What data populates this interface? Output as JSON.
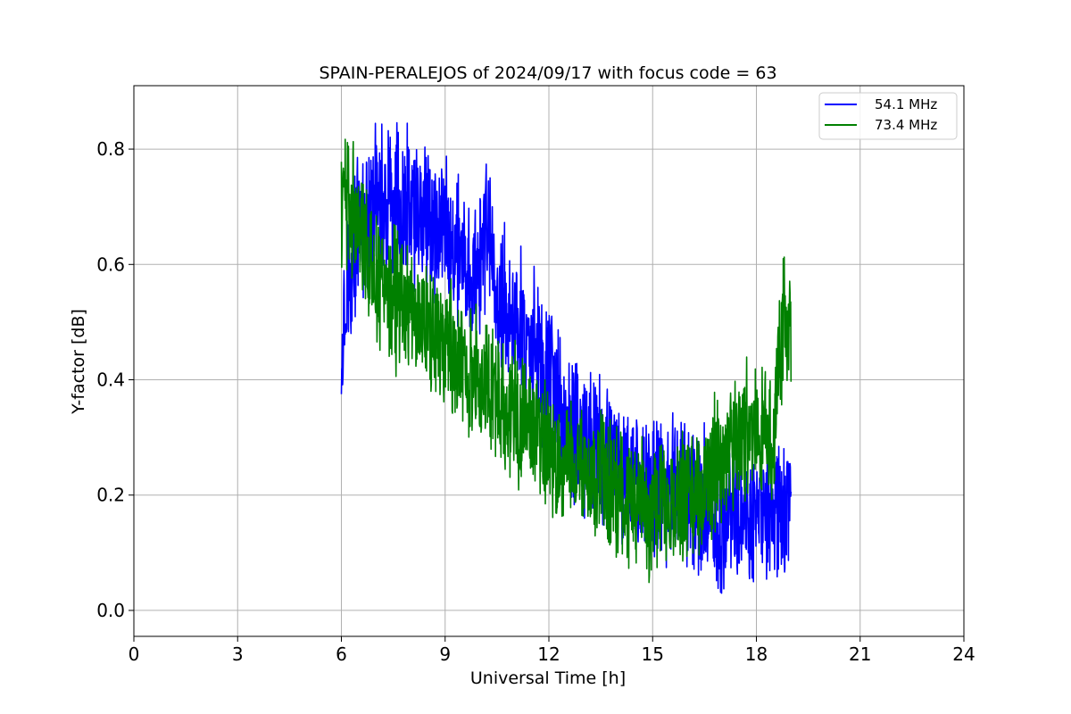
{
  "chart_data": {
    "type": "line",
    "title": "SPAIN-PERALEJOS of 2024/09/17 with focus code = 63",
    "xlabel": "Universal Time [h]",
    "ylabel": "Y-factor [dB]",
    "xlim": [
      0,
      24
    ],
    "ylim": [
      -0.045,
      0.91
    ],
    "xticks": [
      0,
      3,
      6,
      9,
      12,
      15,
      18,
      21,
      24
    ],
    "yticks": [
      0.0,
      0.2,
      0.4,
      0.6,
      0.8
    ],
    "xtick_labels": [
      "0",
      "3",
      "6",
      "9",
      "12",
      "15",
      "18",
      "21",
      "24"
    ],
    "ytick_labels": [
      "0.0",
      "0.2",
      "0.4",
      "0.6",
      "0.8"
    ],
    "grid": true,
    "legend_position": "top-right",
    "series": [
      {
        "name": "54.1 MHz",
        "color": "#0000ff",
        "noise": 0.06,
        "x": [
          6.0,
          6.1,
          6.3,
          6.5,
          7.0,
          7.5,
          8.0,
          8.5,
          9.0,
          9.5,
          10.0,
          10.2,
          10.5,
          11.0,
          11.5,
          12.0,
          12.5,
          13.0,
          13.5,
          14.0,
          14.5,
          15.0,
          15.5,
          16.0,
          16.5,
          17.0,
          17.5,
          18.0,
          18.5,
          19.0
        ],
        "y": [
          0.45,
          0.55,
          0.62,
          0.66,
          0.7,
          0.71,
          0.7,
          0.69,
          0.66,
          0.6,
          0.58,
          0.66,
          0.55,
          0.5,
          0.46,
          0.4,
          0.33,
          0.29,
          0.27,
          0.25,
          0.23,
          0.21,
          0.21,
          0.2,
          0.19,
          0.16,
          0.16,
          0.17,
          0.18,
          0.19
        ]
      },
      {
        "name": "73.4 MHz",
        "color": "#008000",
        "noise": 0.055,
        "x": [
          6.0,
          6.3,
          6.5,
          7.0,
          7.5,
          8.0,
          8.5,
          9.0,
          9.5,
          10.0,
          10.5,
          11.0,
          11.5,
          12.0,
          12.5,
          13.0,
          13.5,
          14.0,
          14.5,
          15.0,
          15.5,
          16.0,
          16.5,
          17.0,
          17.5,
          18.0,
          18.5,
          18.75,
          19.0
        ],
        "y": [
          0.7,
          0.69,
          0.66,
          0.58,
          0.54,
          0.52,
          0.49,
          0.47,
          0.44,
          0.4,
          0.36,
          0.34,
          0.31,
          0.28,
          0.26,
          0.24,
          0.22,
          0.2,
          0.18,
          0.17,
          0.17,
          0.19,
          0.22,
          0.27,
          0.3,
          0.31,
          0.33,
          0.5,
          0.48
        ]
      }
    ]
  }
}
